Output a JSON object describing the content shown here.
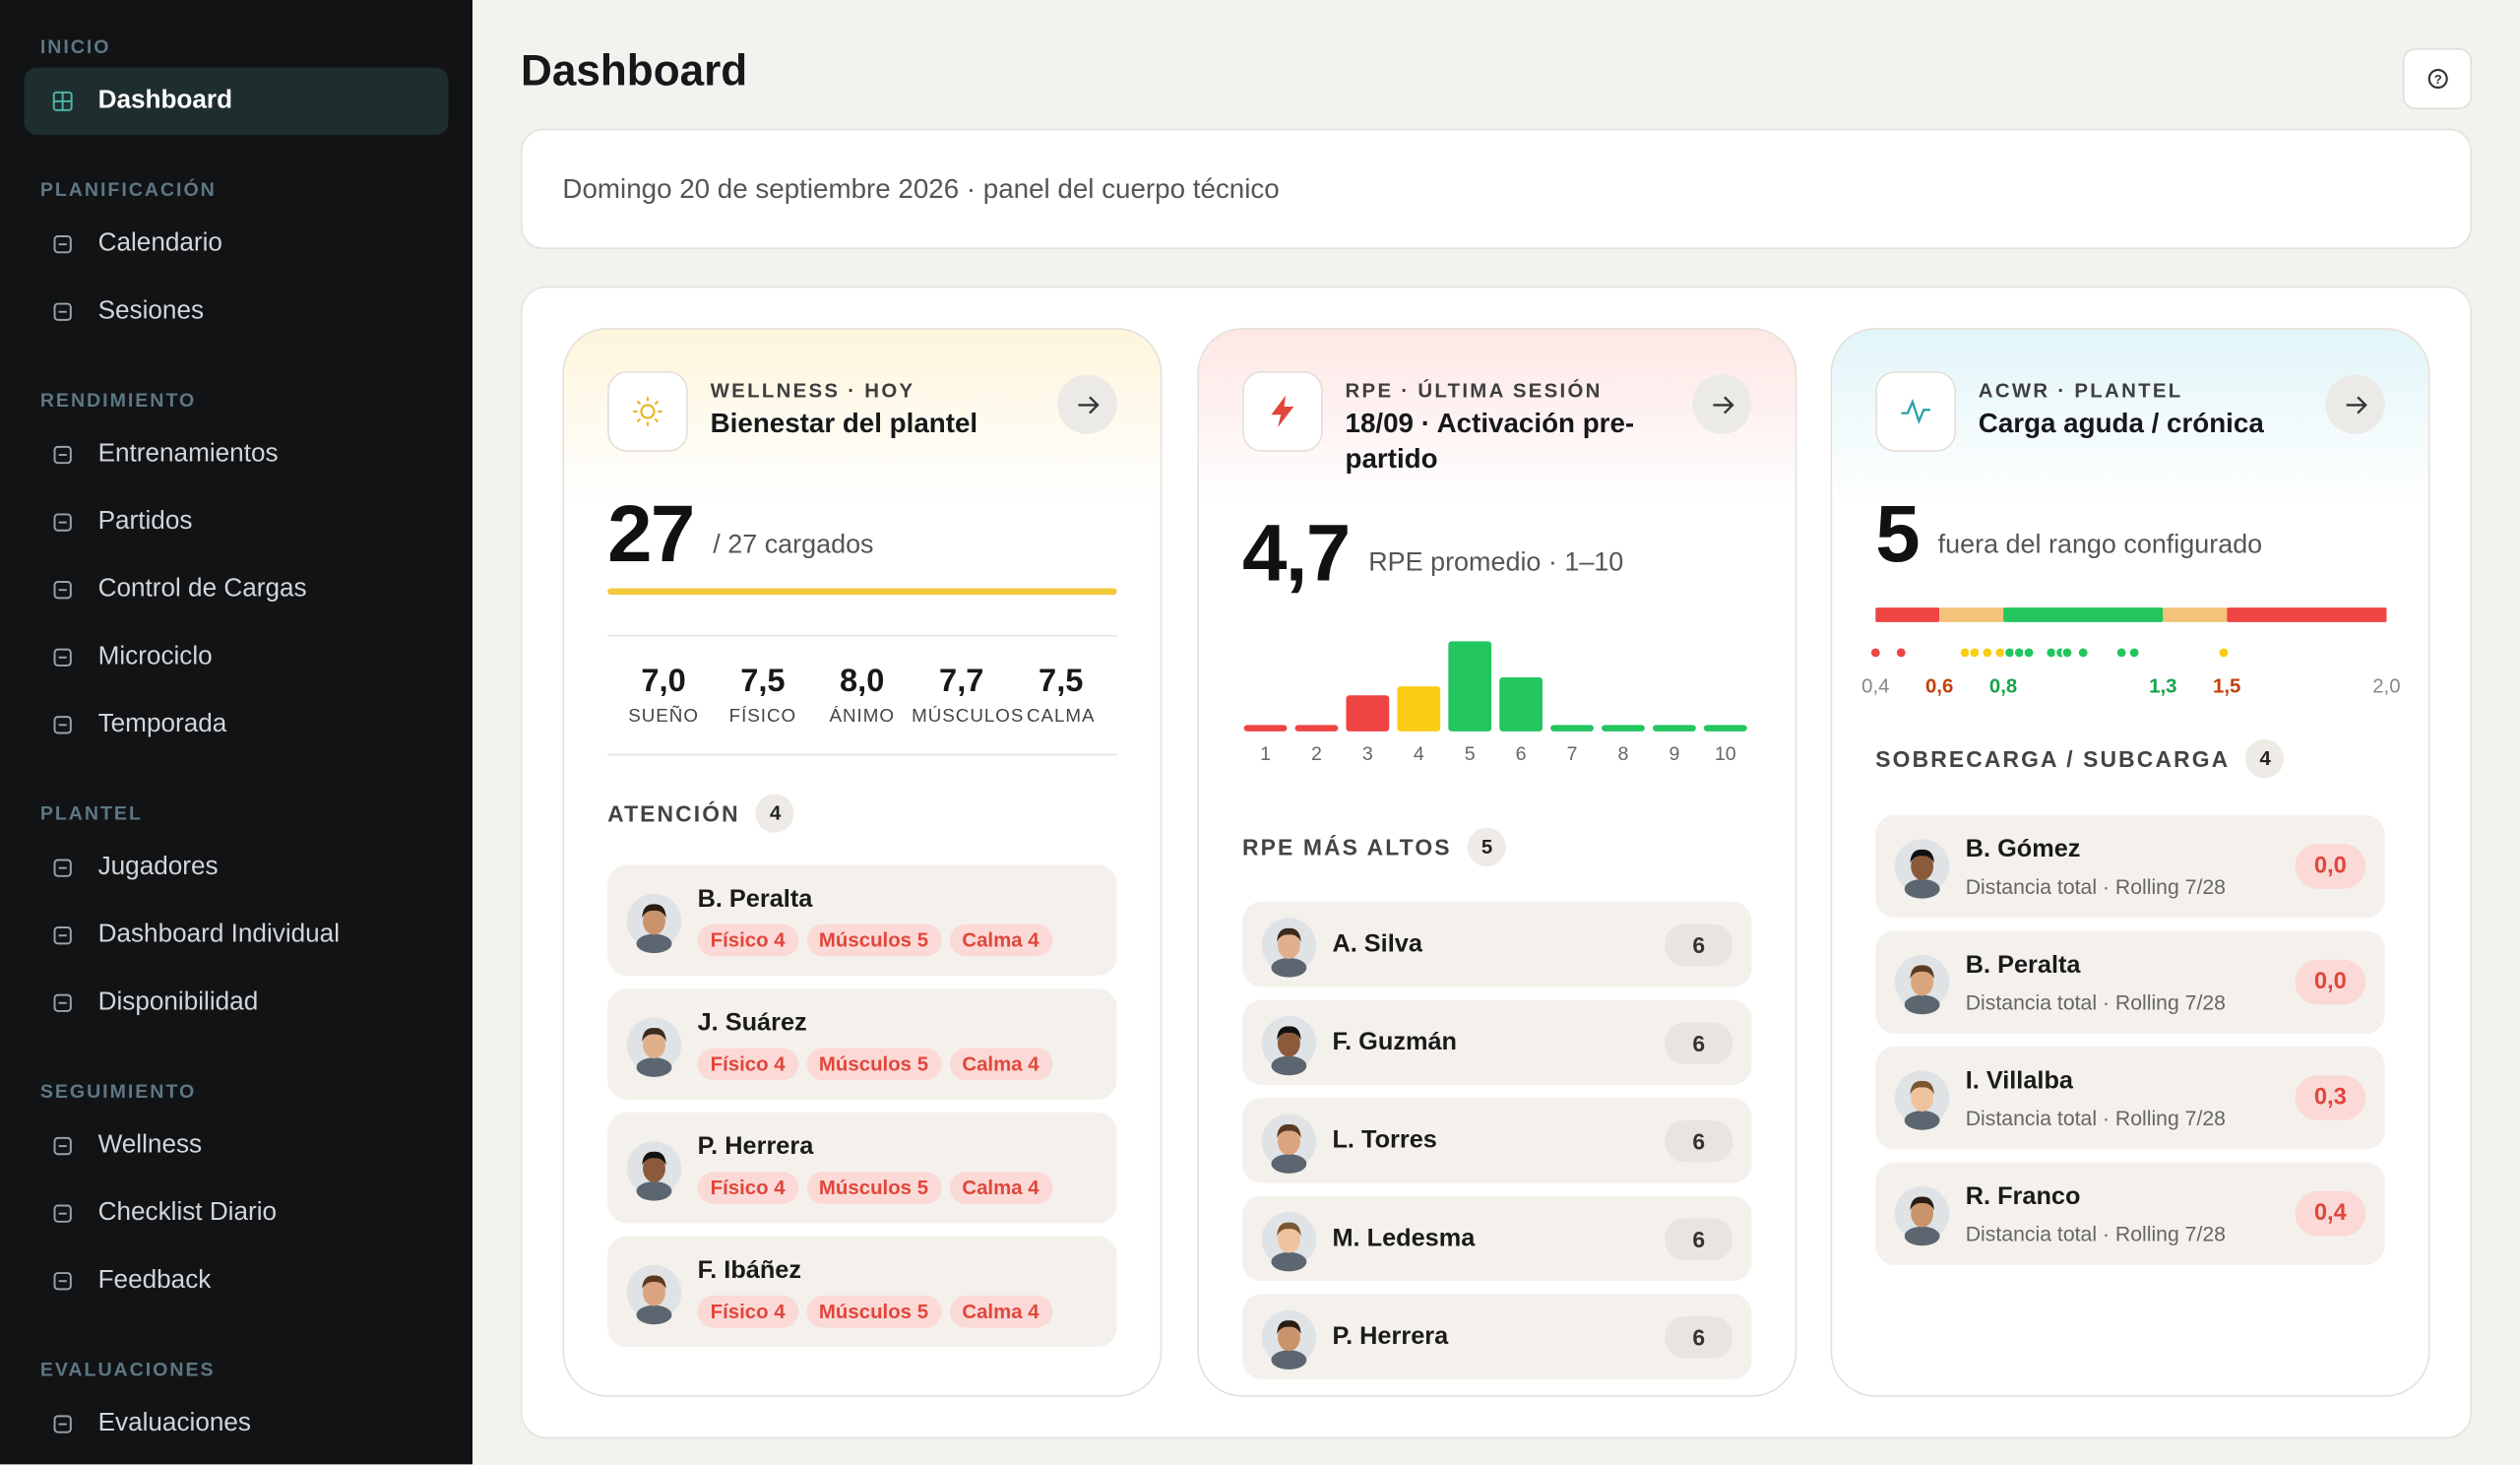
{
  "sidebar": [
    {
      "title": "INICIO",
      "items": [
        "Dashboard"
      ]
    },
    {
      "title": "PLANIFICACIÓN",
      "items": [
        "Calendario",
        "Sesiones"
      ]
    },
    {
      "title": "RENDIMIENTO",
      "items": [
        "Entrenamientos",
        "Partidos",
        "Control de Cargas",
        "Microciclo",
        "Temporada"
      ]
    },
    {
      "title": "PLANTEL",
      "items": [
        "Jugadores",
        "Dashboard Individual",
        "Disponibilidad"
      ]
    },
    {
      "title": "SEGUIMIENTO",
      "items": [
        "Wellness",
        "Checklist Diario",
        "Feedback"
      ]
    },
    {
      "title": "EVALUACIONES",
      "items": [
        "Evaluaciones"
      ]
    }
  ],
  "header": {
    "title": "Dashboard"
  },
  "banner": "Domingo 20 de septiembre 2026 · panel del cuerpo técnico",
  "wellness": {
    "kicker": "WELLNESS · HOY",
    "title": "Bienestar del plantel",
    "big": "27",
    "big_sub": "/ 27 cargados",
    "metrics": [
      {
        "value": "7,0",
        "label": "SUEÑO"
      },
      {
        "value": "7,5",
        "label": "FÍSICO"
      },
      {
        "value": "8,0",
        "label": "ÁNIMO"
      },
      {
        "value": "7,7",
        "label": "MÚSCULOS"
      },
      {
        "value": "7,5",
        "label": "CALMA"
      }
    ],
    "section": "ATENCIÓN",
    "count": "4",
    "players": [
      {
        "name": "B. Peralta",
        "tags": [
          "Físico 4",
          "Músculos 5",
          "Calma 4"
        ]
      },
      {
        "name": "J. Suárez",
        "tags": [
          "Físico 4",
          "Músculos 5",
          "Calma 4"
        ]
      },
      {
        "name": "P. Herrera",
        "tags": [
          "Físico 4",
          "Músculos 5",
          "Calma 4"
        ]
      },
      {
        "name": "F. Ibáñez",
        "tags": [
          "Físico 4",
          "Músculos 5",
          "Calma 4"
        ]
      }
    ]
  },
  "rpe": {
    "kicker": "RPE · ÚLTIMA SESIÓN",
    "title": "18/09 · Activación pre-partido",
    "big": "4,7",
    "big_sub": "RPE promedio · 1–10",
    "chart_data": {
      "type": "bar",
      "categories": [
        1,
        2,
        3,
        4,
        5,
        6,
        7,
        8,
        9,
        10
      ],
      "values": [
        0,
        0,
        4,
        5,
        10,
        6,
        0,
        0,
        0,
        0
      ],
      "colors": [
        "#ef4444",
        "#ef4444",
        "#ef4444",
        "#facc15",
        "#22c55e",
        "#22c55e",
        "#22c55e",
        "#22c55e",
        "#22c55e",
        "#22c55e"
      ]
    },
    "section": "RPE MÁS ALTOS",
    "count": "5",
    "players": [
      {
        "name": "A. Silva",
        "value": "6"
      },
      {
        "name": "F. Guzmán",
        "value": "6"
      },
      {
        "name": "L. Torres",
        "value": "6"
      },
      {
        "name": "M. Ledesma",
        "value": "6"
      },
      {
        "name": "P. Herrera",
        "value": "6"
      }
    ]
  },
  "acwr": {
    "kicker": "ACWR · PLANTEL",
    "title": "Carga aguda / crónica",
    "big": "5",
    "big_sub": "fuera del rango configurado",
    "chart_data": {
      "type": "strip",
      "xlim": [
        0.4,
        2.0
      ],
      "zones": [
        {
          "from": 0.4,
          "to": 0.6,
          "color": "#ef4444"
        },
        {
          "from": 0.6,
          "to": 0.8,
          "color": "#f4c27a"
        },
        {
          "from": 0.8,
          "to": 1.3,
          "color": "#22c55e"
        },
        {
          "from": 1.3,
          "to": 1.5,
          "color": "#f4c27a"
        },
        {
          "from": 1.5,
          "to": 2.0,
          "color": "#ef4444"
        }
      ],
      "xticks": [
        {
          "value": 0.4,
          "label": "0,4",
          "color": "#888"
        },
        {
          "value": 0.6,
          "label": "0,6",
          "color": "#c2410c"
        },
        {
          "value": 0.8,
          "label": "0,8",
          "color": "#16a34a"
        },
        {
          "value": 1.3,
          "label": "1,3",
          "color": "#16a34a"
        },
        {
          "value": 1.5,
          "label": "1,5",
          "color": "#c2410c"
        },
        {
          "value": 2.0,
          "label": "2,0",
          "color": "#888"
        }
      ],
      "x": [
        0.4,
        0.48,
        0.68,
        0.71,
        0.75,
        0.79,
        0.82,
        0.85,
        0.88,
        0.95,
        0.98,
        1.0,
        1.05,
        1.17,
        1.21,
        1.49
      ]
    },
    "section": "SOBRECARGA / SUBCARGA",
    "count": "4",
    "players": [
      {
        "name": "B. Gómez",
        "detail": "Distancia total · Rolling 7/28",
        "value": "0,0"
      },
      {
        "name": "B. Peralta",
        "detail": "Distancia total · Rolling 7/28",
        "value": "0,0"
      },
      {
        "name": "I. Villalba",
        "detail": "Distancia total · Rolling 7/28",
        "value": "0,3"
      },
      {
        "name": "R. Franco",
        "detail": "Distancia total · Rolling 7/28",
        "value": "0,4"
      }
    ]
  }
}
